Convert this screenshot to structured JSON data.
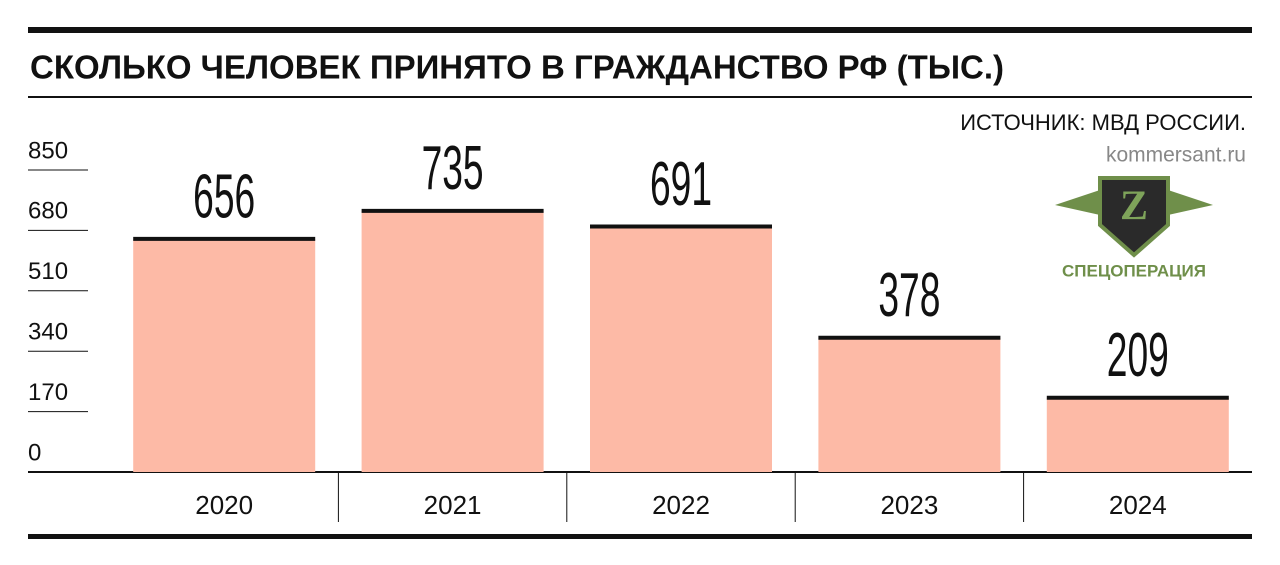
{
  "chart_data": {
    "type": "bar",
    "title": "СКОЛЬКО ЧЕЛОВЕК ПРИНЯТО В ГРАЖДАНСТВО РФ (ТЫС.)",
    "source": "ИСТОЧНИК: МВД РОССИИ.",
    "credit": "kommersant.ru",
    "badge": {
      "letter": "Z",
      "text": "СПЕЦОПЕРАЦИЯ"
    },
    "categories": [
      "2020",
      "2021",
      "2022",
      "2023",
      "2024"
    ],
    "values": [
      656,
      735,
      691,
      378,
      209
    ],
    "color": "#fdbaa6",
    "ylim": [
      0,
      850
    ],
    "yticks": [
      0,
      170,
      340,
      510,
      680,
      850
    ]
  }
}
